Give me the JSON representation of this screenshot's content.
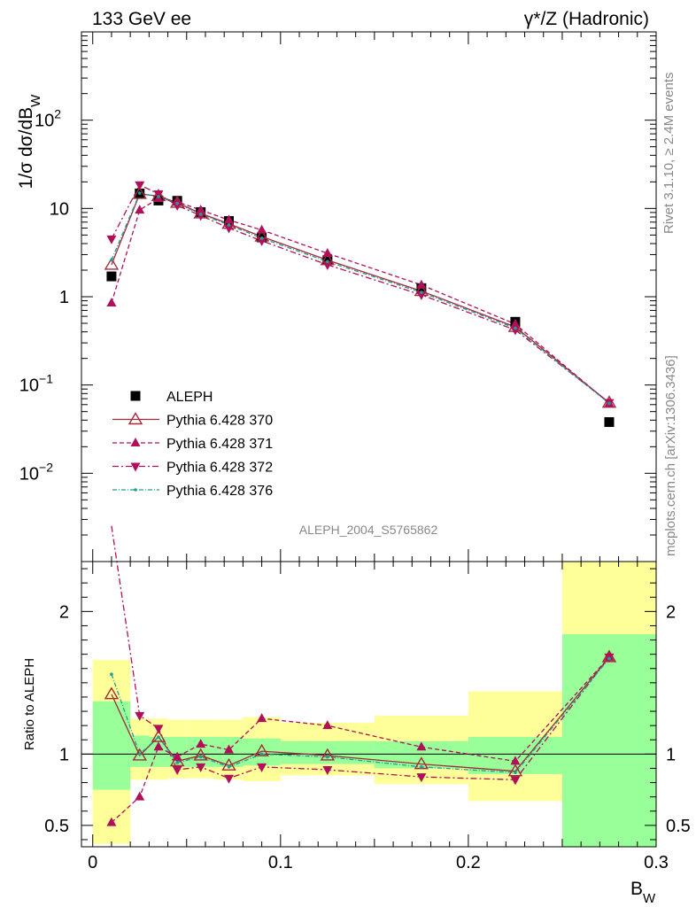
{
  "header": {
    "left": "133 GeV ee",
    "right": "γ*/Z (Hadronic)"
  },
  "side_labels": {
    "rivet": "Rivet 3.1.10, ≥ 2.4M events",
    "mcplots": "mcplots.cern.ch [arXiv:1306.3436]"
  },
  "analysis_id": "ALEPH_2004_S5765862",
  "colors": {
    "data": "#000000",
    "p370": "#a52a3a",
    "p371": "#b0105a",
    "p372": "#b0105a",
    "p376": "#20a090",
    "band_inner": "#99ff99",
    "band_outer": "#ffff99"
  },
  "chart_data": [
    {
      "type": "line",
      "panel": "main",
      "ylabel": "1/σ  dσ/dB",
      "ylabel_sub": "W",
      "yscale": "log",
      "ylim": [
        0.001,
        1000
      ],
      "xlim": [
        -0.006,
        0.3
      ],
      "y_ticks": [
        {
          "value": 0.01,
          "base": "10",
          "exp": "−2"
        },
        {
          "value": 0.1,
          "base": "10",
          "exp": "−1"
        },
        {
          "value": 1,
          "base": "1",
          "exp": ""
        },
        {
          "value": 10,
          "base": "10",
          "exp": ""
        },
        {
          "value": 100,
          "base": "10",
          "exp": "2"
        }
      ],
      "x": [
        0.01,
        0.025,
        0.035,
        0.045,
        0.0575,
        0.0725,
        0.09,
        0.125,
        0.175,
        0.225,
        0.275
      ],
      "series": [
        {
          "name": "ALEPH",
          "style": "data",
          "values": [
            1.7,
            14.8,
            12.3,
            12.2,
            9.1,
            7.2,
            4.7,
            2.6,
            1.25,
            0.52,
            0.038
          ]
        },
        {
          "name": "Pythia 6.428 370",
          "style": "p370",
          "values": [
            2.3,
            14.6,
            13.8,
            11.6,
            8.8,
            6.7,
            4.8,
            2.6,
            1.16,
            0.455,
            0.063
          ]
        },
        {
          "name": "Pythia 6.428 371",
          "style": "p371",
          "values": [
            0.85,
            9.6,
            13.0,
            11.9,
            9.6,
            7.4,
            5.7,
            3.1,
            1.36,
            0.49,
            0.062
          ]
        },
        {
          "name": "Pythia 6.428 372",
          "style": "p372",
          "values": [
            4.5,
            18.5,
            14.6,
            10.8,
            8.3,
            6.0,
            4.3,
            2.3,
            1.05,
            0.42,
            0.063
          ]
        },
        {
          "name": "Pythia 6.428 376",
          "style": "p376",
          "values": [
            2.6,
            14.9,
            13.6,
            11.4,
            8.6,
            6.5,
            4.6,
            2.5,
            1.12,
            0.44,
            0.062
          ]
        }
      ]
    },
    {
      "type": "line",
      "panel": "ratio",
      "ylabel": "Ratio to ALEPH",
      "xlabel": "B",
      "xlabel_sub": "W",
      "ylim": [
        0.35,
        2.35
      ],
      "xlim": [
        -0.006,
        0.3
      ],
      "y_ticks": [
        0.5,
        1,
        2
      ],
      "x_ticks": [
        0,
        0.1,
        0.2,
        0.3
      ],
      "x": [
        0.01,
        0.025,
        0.035,
        0.045,
        0.0575,
        0.0725,
        0.09,
        0.125,
        0.175,
        0.225,
        0.275
      ],
      "bands": [
        {
          "x0": 0.0,
          "x1": 0.02,
          "inner": [
            0.75,
            1.37
          ],
          "outer": [
            0.37,
            1.66
          ]
        },
        {
          "x0": 0.02,
          "x1": 0.03,
          "inner": [
            0.91,
            1.13
          ],
          "outer": [
            0.82,
            1.25
          ]
        },
        {
          "x0": 0.03,
          "x1": 0.04,
          "inner": [
            0.91,
            1.12
          ],
          "outer": [
            0.82,
            1.25
          ]
        },
        {
          "x0": 0.04,
          "x1": 0.05,
          "inner": [
            0.91,
            1.12
          ],
          "outer": [
            0.83,
            1.24
          ]
        },
        {
          "x0": 0.05,
          "x1": 0.065,
          "inner": [
            0.91,
            1.12
          ],
          "outer": [
            0.83,
            1.24
          ]
        },
        {
          "x0": 0.065,
          "x1": 0.08,
          "inner": [
            0.91,
            1.12
          ],
          "outer": [
            0.82,
            1.24
          ]
        },
        {
          "x0": 0.08,
          "x1": 0.1,
          "inner": [
            0.92,
            1.11
          ],
          "outer": [
            0.81,
            1.26
          ]
        },
        {
          "x0": 0.1,
          "x1": 0.15,
          "inner": [
            0.93,
            1.09
          ],
          "outer": [
            0.85,
            1.22
          ]
        },
        {
          "x0": 0.15,
          "x1": 0.2,
          "inner": [
            0.9,
            1.09
          ],
          "outer": [
            0.79,
            1.27
          ]
        },
        {
          "x0": 0.2,
          "x1": 0.25,
          "inner": [
            0.86,
            1.12
          ],
          "outer": [
            0.67,
            1.44
          ]
        },
        {
          "x0": 0.25,
          "x1": 0.3,
          "inner": [
            0.35,
            1.84
          ],
          "outer": [
            0.35,
            2.35
          ]
        }
      ],
      "series": [
        {
          "name": "Pythia 6.428 370",
          "style": "p370",
          "values": [
            1.42,
            0.99,
            1.12,
            0.95,
            0.99,
            0.92,
            1.02,
            0.99,
            0.93,
            0.88,
            1.68
          ]
        },
        {
          "name": "Pythia 6.428 371",
          "style": "p371",
          "values": [
            0.52,
            0.7,
            1.05,
            0.98,
            1.07,
            1.03,
            1.25,
            1.2,
            1.05,
            0.95,
            1.68
          ]
        },
        {
          "name": "Pythia 6.428 372",
          "style": "p372",
          "values": [
            2.6,
            1.27,
            1.18,
            0.89,
            0.91,
            0.83,
            0.91,
            0.89,
            0.84,
            0.82,
            1.68
          ]
        },
        {
          "name": "Pythia 6.428 376",
          "style": "p376",
          "values": [
            1.56,
            1.0,
            1.12,
            0.94,
            0.98,
            0.91,
            1.0,
            0.98,
            0.91,
            0.87,
            1.67
          ]
        }
      ]
    }
  ]
}
